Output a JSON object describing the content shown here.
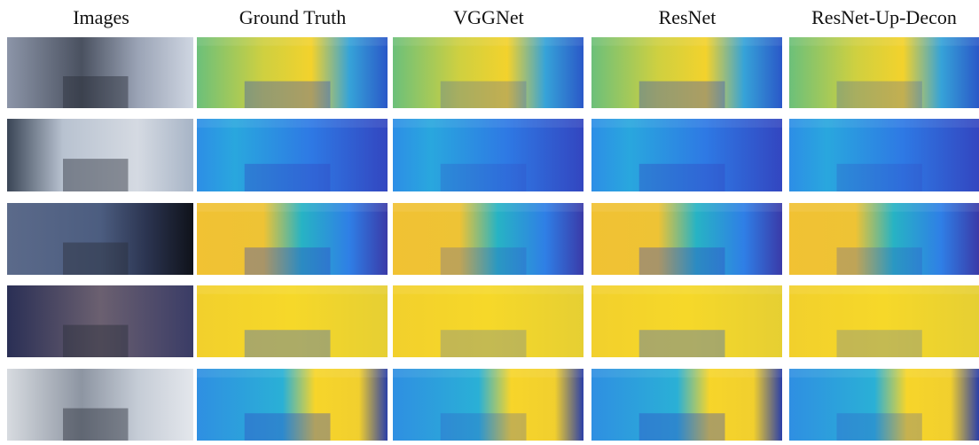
{
  "figure": {
    "column_headers": [
      "Images",
      "Ground Truth",
      "VGGNet",
      "ResNet",
      "ResNet-Up-Decon"
    ]
  }
}
